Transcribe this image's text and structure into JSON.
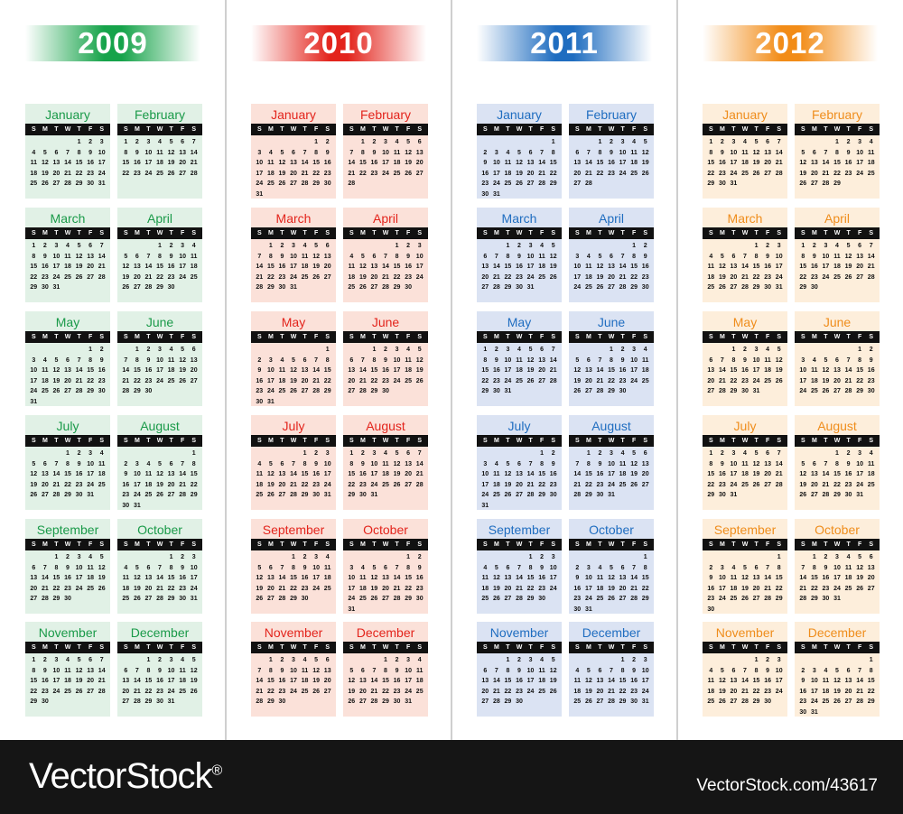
{
  "dow": [
    "S",
    "M",
    "T",
    "W",
    "T",
    "F",
    "S"
  ],
  "years": [
    {
      "label": "2009",
      "firstDay": 4,
      "leap": false,
      "bg": "#e1f1e6",
      "text": "#1a9a49",
      "grad": [
        "#ffffff",
        "#16a34a",
        "#ffffff"
      ]
    },
    {
      "label": "2010",
      "firstDay": 5,
      "leap": false,
      "bg": "#fbe1d9",
      "text": "#e3241c",
      "grad": [
        "#ffffff",
        "#e3241c",
        "#ffffff"
      ]
    },
    {
      "label": "2011",
      "firstDay": 6,
      "leap": false,
      "bg": "#dbe3f3",
      "text": "#1f6dc0",
      "grad": [
        "#ffffff",
        "#1f6dc0",
        "#ffffff"
      ]
    },
    {
      "label": "2012",
      "firstDay": 0,
      "leap": true,
      "bg": "#fdeedb",
      "text": "#ef8d1c",
      "grad": [
        "#ffffff",
        "#f28c17",
        "#ffffff"
      ]
    }
  ],
  "months": [
    "January",
    "February",
    "March",
    "April",
    "May",
    "June",
    "July",
    "August",
    "September",
    "October",
    "November",
    "December"
  ],
  "footer": {
    "brand": "VectorStock",
    "brand_mark": "®",
    "url": "VectorStock.com/43617"
  }
}
